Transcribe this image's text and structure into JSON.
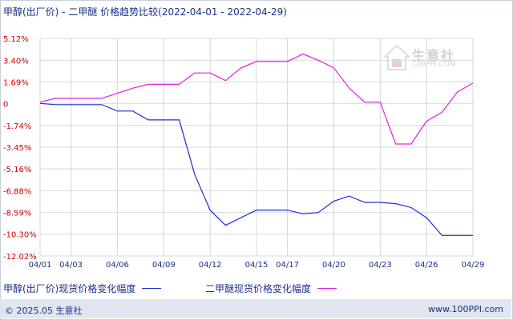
{
  "chart_data": {
    "type": "line",
    "title": "甲醇(出厂价) - 二甲醚 价格趋势比较(2022-04-01 - 2022-04-29)",
    "x": [
      "04/01",
      "04/02",
      "04/03",
      "04/04",
      "04/05",
      "04/06",
      "04/07",
      "04/08",
      "04/09",
      "04/10",
      "04/11",
      "04/12",
      "04/13",
      "04/14",
      "04/15",
      "04/16",
      "04/17",
      "04/18",
      "04/19",
      "04/20",
      "04/21",
      "04/22",
      "04/23",
      "04/24",
      "04/25",
      "04/26",
      "04/27",
      "04/28",
      "04/29"
    ],
    "x_tick_labels": [
      "04/01",
      "04/03",
      "04/06",
      "04/09",
      "04/12",
      "04/15",
      "04/17",
      "04/20",
      "04/23",
      "04/26",
      "04/29"
    ],
    "y_ticks": [
      5.12,
      3.4,
      1.69,
      0,
      -1.74,
      -3.45,
      -5.16,
      -6.88,
      -8.59,
      -10.3,
      -12.02
    ],
    "y_tick_labels": [
      "5.12%",
      "3.40%",
      "1.69%",
      "0",
      "-1.74%",
      "-3.45%",
      "-5.16%",
      "-6.88%",
      "-8.59%",
      "-10.30%",
      "-12.02%"
    ],
    "ylim": [
      -12.02,
      5.12
    ],
    "grid": true,
    "legend_position": "bottom",
    "series": [
      {
        "name": "甲醇(出厂价)现货价格变化幅度",
        "color": "#1f2fd0",
        "values": [
          0,
          -0.1,
          -0.1,
          -0.1,
          -0.1,
          -0.6,
          -0.6,
          -1.3,
          -1.3,
          -1.3,
          -5.6,
          -8.4,
          -9.6,
          -9.0,
          -8.4,
          -8.4,
          -8.4,
          -8.7,
          -8.6,
          -7.7,
          -7.3,
          -7.8,
          -7.8,
          -7.9,
          -8.2,
          -9.0,
          -10.4,
          -10.4,
          -10.4
        ]
      },
      {
        "name": "二甲醚现货价格变化幅度",
        "color": "#e020e0",
        "values": [
          0.1,
          0.4,
          0.4,
          0.4,
          0.4,
          0.8,
          1.2,
          1.5,
          1.5,
          1.5,
          2.4,
          2.4,
          1.8,
          2.8,
          3.3,
          3.3,
          3.3,
          3.9,
          3.4,
          2.8,
          1.2,
          0.1,
          0.1,
          -3.2,
          -3.2,
          -1.4,
          -0.7,
          0.9,
          1.6
        ]
      }
    ]
  },
  "footer": {
    "copyright": "© 2025.05 生意社",
    "site": "www.100PPI.com"
  },
  "watermark": {
    "text": "生意社",
    "sub": "100PPI.COM"
  }
}
